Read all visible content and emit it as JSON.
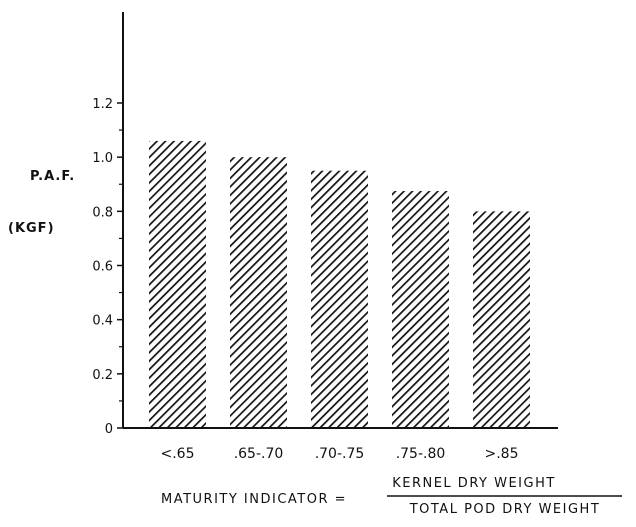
{
  "chart_data": {
    "type": "bar",
    "categories": [
      "<.65",
      ".65-.70",
      ".70-.75",
      ".75-.80",
      ">.85"
    ],
    "values": [
      1.06,
      1.0,
      0.95,
      0.875,
      0.8
    ],
    "ylabel_line1": "P.A.F.",
    "ylabel_line2": "(KGF)",
    "xlabel_prefix": "MATURITY INDICATOR =",
    "xlabel_numerator": "KERNEL DRY WEIGHT",
    "xlabel_denominator": "TOTAL POD DRY WEIGHT",
    "yticks": [
      "0",
      "0.2",
      "0.4",
      "0.6",
      "0.8",
      "1.0",
      "1.2"
    ],
    "ylim": [
      0,
      1.2
    ],
    "grid": false,
    "legend": "none",
    "bar_fill": "diagonal-hatch",
    "color": "#111111"
  }
}
